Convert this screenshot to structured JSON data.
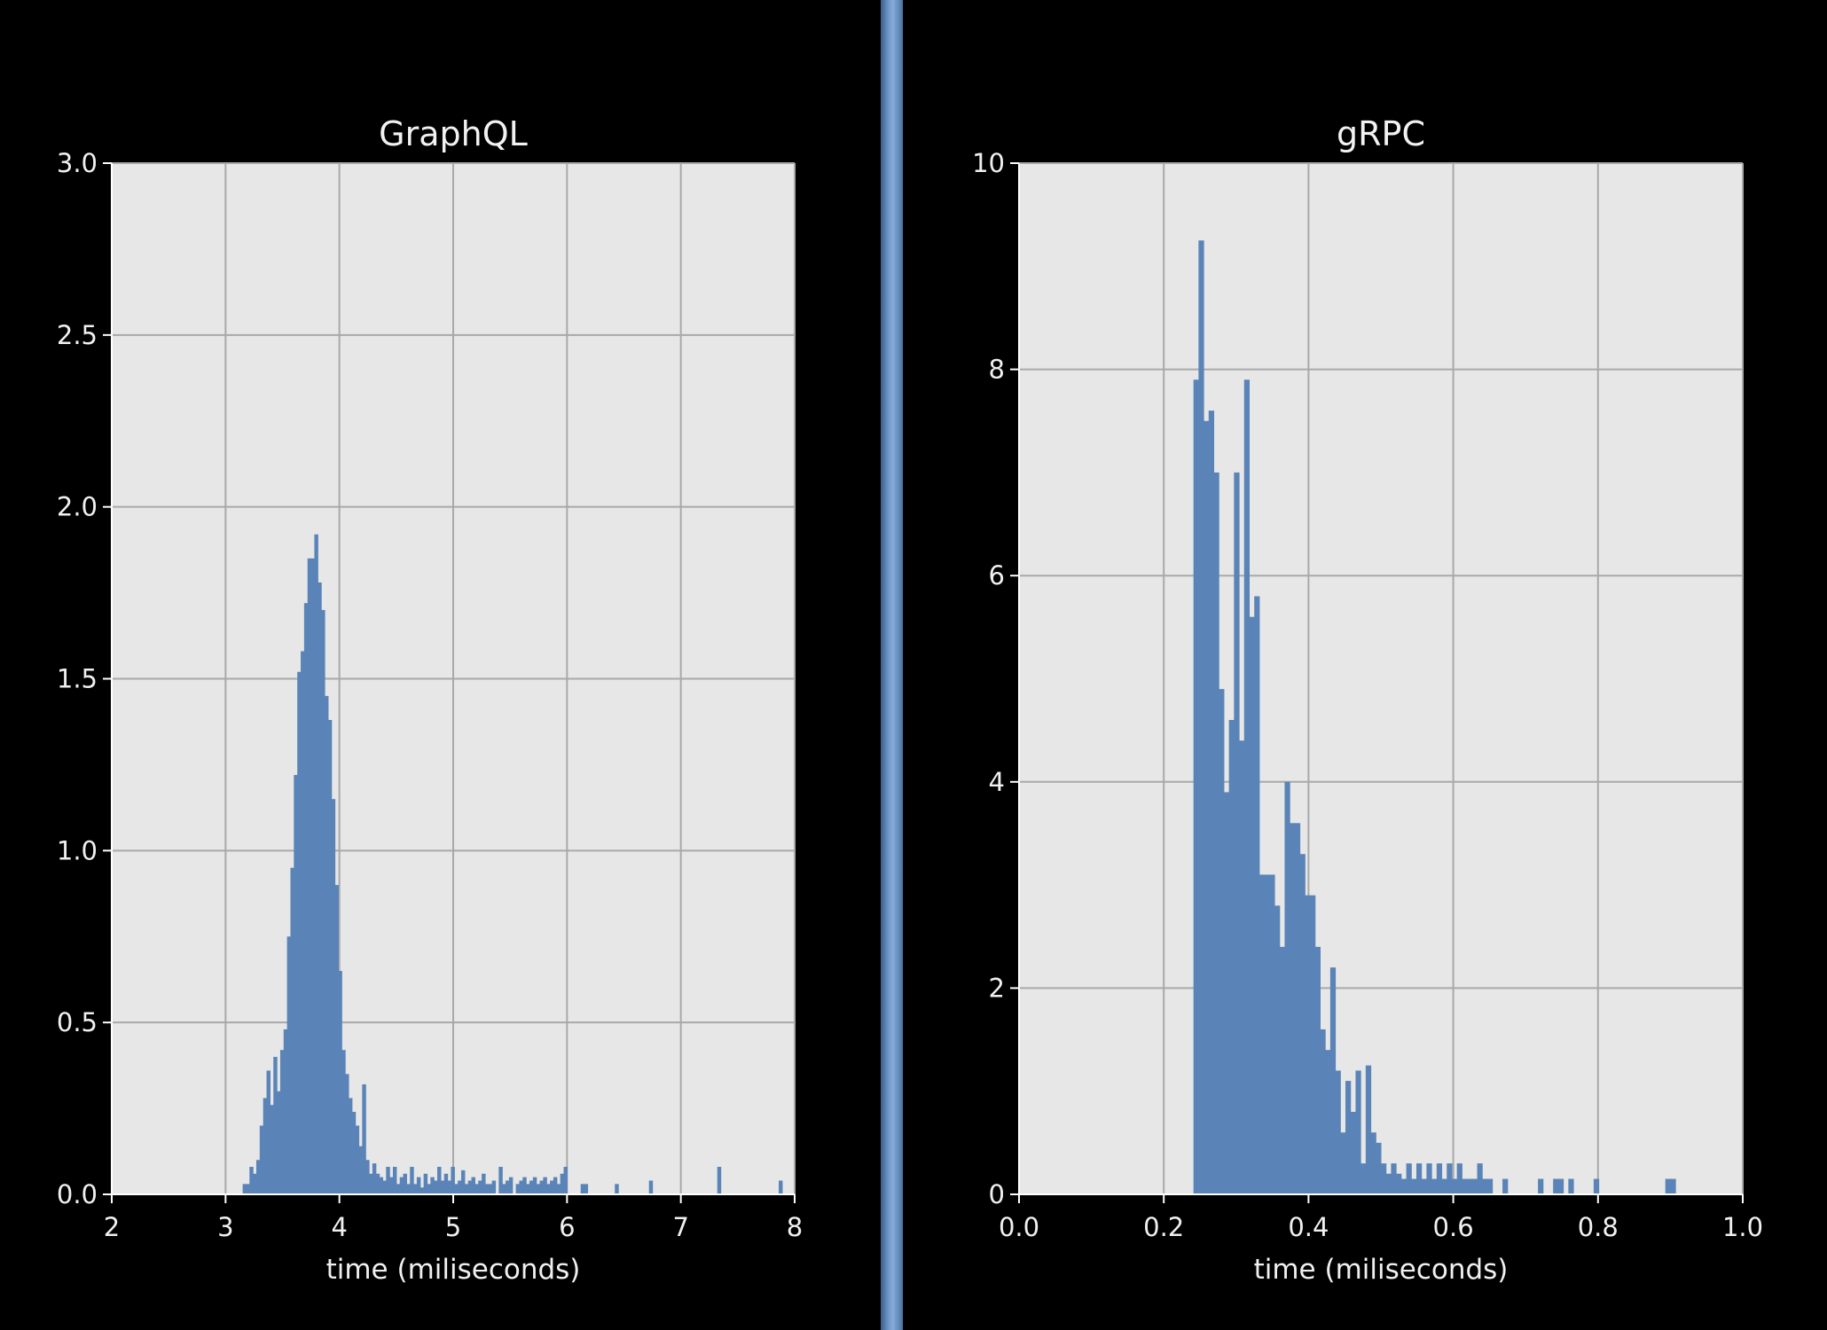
{
  "colors": {
    "background": "#000000",
    "plot_bg": "#e6e7e6",
    "grid": "#a9a9a9",
    "bar": "#5a84b8",
    "text": "#f0f0f0"
  },
  "chart_data": [
    {
      "type": "bar",
      "title": "GraphQL",
      "xlabel": "time (miliseconds)",
      "ylabel": "",
      "xlim": [
        2,
        8
      ],
      "ylim": [
        0,
        3.0
      ],
      "xticks": [
        "2",
        "3",
        "4",
        "5",
        "6",
        "7",
        "8"
      ],
      "yticks": [
        "0.0",
        "0.5",
        "1.0",
        "1.5",
        "2.0",
        "2.5",
        "3.0"
      ],
      "grid": true,
      "bin_width": 0.03,
      "x": [
        3.15,
        3.18,
        3.21,
        3.24,
        3.27,
        3.3,
        3.33,
        3.36,
        3.39,
        3.42,
        3.45,
        3.48,
        3.51,
        3.54,
        3.57,
        3.6,
        3.63,
        3.66,
        3.69,
        3.72,
        3.75,
        3.78,
        3.81,
        3.84,
        3.87,
        3.9,
        3.93,
        3.96,
        3.99,
        4.02,
        4.05,
        4.08,
        4.11,
        4.14,
        4.17,
        4.2,
        4.23,
        4.26,
        4.29,
        4.32,
        4.35,
        4.38,
        4.41,
        4.44,
        4.47,
        4.5,
        4.53,
        4.56,
        4.59,
        4.62,
        4.65,
        4.68,
        4.71,
        4.74,
        4.77,
        4.8,
        4.83,
        4.86,
        4.89,
        4.92,
        4.95,
        4.98,
        5.01,
        5.04,
        5.07,
        5.1,
        5.13,
        5.16,
        5.19,
        5.22,
        5.25,
        5.28,
        5.31,
        5.34,
        5.4,
        5.43,
        5.46,
        5.49,
        5.55,
        5.58,
        5.61,
        5.64,
        5.67,
        5.7,
        5.73,
        5.76,
        5.79,
        5.82,
        5.85,
        5.88,
        5.91,
        5.94,
        5.97,
        6.12,
        6.15,
        6.42,
        6.72,
        7.32,
        7.86
      ],
      "values": [
        0.03,
        0.03,
        0.08,
        0.06,
        0.1,
        0.2,
        0.28,
        0.36,
        0.26,
        0.4,
        0.3,
        0.42,
        0.48,
        0.75,
        0.95,
        1.22,
        1.52,
        1.58,
        1.72,
        1.85,
        1.85,
        1.92,
        1.78,
        1.7,
        1.45,
        1.38,
        1.15,
        0.9,
        0.65,
        0.42,
        0.35,
        0.28,
        0.24,
        0.2,
        0.14,
        0.32,
        0.1,
        0.06,
        0.09,
        0.06,
        0.05,
        0.04,
        0.08,
        0.05,
        0.08,
        0.03,
        0.05,
        0.06,
        0.03,
        0.08,
        0.03,
        0.05,
        0.02,
        0.06,
        0.03,
        0.05,
        0.04,
        0.08,
        0.04,
        0.06,
        0.04,
        0.08,
        0.03,
        0.04,
        0.07,
        0.03,
        0.04,
        0.05,
        0.03,
        0.04,
        0.06,
        0.03,
        0.03,
        0.04,
        0.08,
        0.03,
        0.04,
        0.05,
        0.03,
        0.04,
        0.05,
        0.03,
        0.04,
        0.05,
        0.03,
        0.04,
        0.05,
        0.03,
        0.04,
        0.05,
        0.03,
        0.06,
        0.08,
        0.03,
        0.03,
        0.03,
        0.04,
        0.08,
        0.04
      ]
    },
    {
      "type": "bar",
      "title": "gRPC",
      "xlabel": "time (miliseconds)",
      "ylabel": "",
      "xlim": [
        0.0,
        1.0
      ],
      "ylim": [
        0,
        10
      ],
      "xticks": [
        "0.0",
        "0.2",
        "0.4",
        "0.6",
        "0.8",
        "1.0"
      ],
      "yticks": [
        "0",
        "2",
        "4",
        "6",
        "8",
        "10"
      ],
      "grid": true,
      "bin_width": 0.0069,
      "x": [
        0.241,
        0.248,
        0.255,
        0.262,
        0.269,
        0.276,
        0.283,
        0.29,
        0.297,
        0.304,
        0.311,
        0.318,
        0.325,
        0.332,
        0.339,
        0.346,
        0.353,
        0.36,
        0.367,
        0.374,
        0.381,
        0.388,
        0.395,
        0.402,
        0.409,
        0.416,
        0.423,
        0.43,
        0.437,
        0.444,
        0.451,
        0.458,
        0.465,
        0.472,
        0.479,
        0.486,
        0.493,
        0.5,
        0.507,
        0.514,
        0.521,
        0.528,
        0.535,
        0.542,
        0.549,
        0.556,
        0.563,
        0.57,
        0.577,
        0.584,
        0.591,
        0.598,
        0.605,
        0.612,
        0.619,
        0.626,
        0.633,
        0.64,
        0.647,
        0.668,
        0.717,
        0.738,
        0.745,
        0.759,
        0.794,
        0.893,
        0.9
      ],
      "values": [
        7.9,
        9.25,
        7.5,
        7.6,
        7.0,
        4.9,
        3.9,
        4.6,
        7.0,
        4.4,
        7.9,
        5.6,
        5.8,
        3.1,
        3.1,
        3.1,
        2.8,
        2.4,
        4.0,
        3.6,
        3.6,
        3.3,
        2.9,
        2.9,
        2.4,
        1.6,
        1.4,
        2.2,
        1.2,
        0.6,
        1.1,
        0.8,
        1.2,
        0.3,
        1.25,
        0.6,
        0.5,
        0.3,
        0.2,
        0.3,
        0.2,
        0.15,
        0.3,
        0.15,
        0.3,
        0.15,
        0.3,
        0.15,
        0.3,
        0.15,
        0.3,
        0.15,
        0.3,
        0.15,
        0.15,
        0.15,
        0.3,
        0.15,
        0.15,
        0.15,
        0.15,
        0.15,
        0.15,
        0.15,
        0.15,
        0.15,
        0.15
      ]
    }
  ]
}
